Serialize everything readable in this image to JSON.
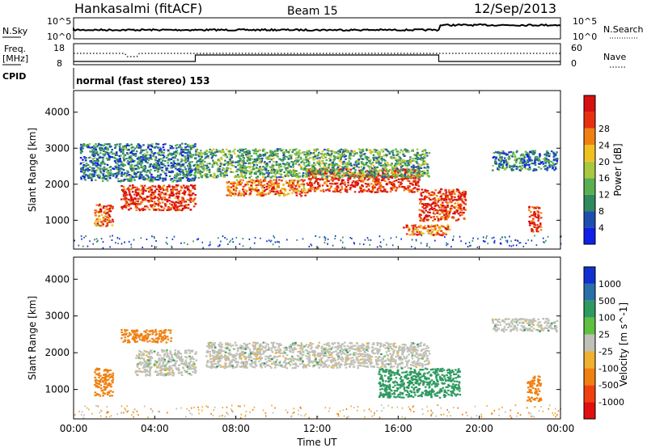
{
  "header": {
    "station": "Hankasalmi (fitACF)",
    "beam": "Beam 15",
    "date": "12/Sep/2013"
  },
  "top_panels": {
    "nsky_label": "N.Sky",
    "nsearch_label": "N.Search",
    "nsky_ticks": [
      "10^5",
      "10^0"
    ],
    "nsearch_ticks": [
      "10^5",
      "10^0"
    ],
    "freq_label_1": "Freq.",
    "freq_label_2": "[MHz]",
    "freq_ticks": [
      "18",
      "8"
    ],
    "nave_label": "Nave",
    "nave_ticks": [
      "60",
      "0"
    ],
    "cpid_label": "CPID",
    "cpid_text": "normal (fast stereo) 153"
  },
  "chart_data": [
    {
      "type": "heatmap",
      "title": "",
      "xlabel": "Time UT",
      "ylabel": "Slant Range [km]",
      "xlim": [
        "00:00",
        "24:00"
      ],
      "ylim": [
        200,
        4600
      ],
      "x_ticks": [
        "00:00",
        "04:00",
        "08:00",
        "12:00",
        "16:00",
        "20:00",
        "00:00"
      ],
      "y_ticks": [
        "1000",
        "2000",
        "3000",
        "4000"
      ],
      "colorbar": {
        "label": "Power [dB]",
        "range": [
          0,
          32
        ],
        "ticks": [
          "4",
          "8",
          "12",
          "16",
          "20",
          "24",
          "28"
        ],
        "colors": [
          "#1020e8",
          "#1e4fb0",
          "#2f8a60",
          "#58b050",
          "#a8c840",
          "#f0c020",
          "#f08010",
          "#e83010",
          "#d81010"
        ]
      },
      "regions": [
        {
          "t0": 1.0,
          "t1": 1.9,
          "r0": 850,
          "r1": 1500,
          "level": 24
        },
        {
          "t0": 2.3,
          "t1": 6.0,
          "r0": 1300,
          "r1": 2000,
          "level": 28
        },
        {
          "t0": 7.5,
          "t1": 11.5,
          "r0": 1700,
          "r1": 2150,
          "level": 24
        },
        {
          "t0": 11.5,
          "t1": 17.0,
          "r0": 1800,
          "r1": 2450,
          "level": 28
        },
        {
          "t0": 17.0,
          "t1": 19.3,
          "r0": 1000,
          "r1": 1900,
          "level": 28
        },
        {
          "t0": 16.2,
          "t1": 18.5,
          "r0": 600,
          "r1": 900,
          "level": 24
        },
        {
          "t0": 22.4,
          "t1": 23.0,
          "r0": 700,
          "r1": 1400,
          "level": 28
        },
        {
          "t0": 0.3,
          "t1": 6.0,
          "r0": 2100,
          "r1": 3150,
          "level": 8
        },
        {
          "t0": 6.0,
          "t1": 17.5,
          "r0": 2200,
          "r1": 3000,
          "level": 12
        },
        {
          "t0": 20.6,
          "t1": 23.8,
          "r0": 2400,
          "r1": 2950,
          "level": 8
        }
      ]
    },
    {
      "type": "heatmap",
      "title": "",
      "xlabel": "Time UT",
      "ylabel": "Slant Range [km]",
      "xlim": [
        "00:00",
        "24:00"
      ],
      "ylim": [
        200,
        4600
      ],
      "x_ticks": [
        "00:00",
        "04:00",
        "08:00",
        "12:00",
        "16:00",
        "20:00",
        "00:00"
      ],
      "y_ticks": [
        "1000",
        "2000",
        "3000",
        "4000"
      ],
      "colorbar": {
        "label": "Velocity [m s^-1]",
        "ticks": [
          "1000",
          "500",
          "100",
          "25",
          "-25",
          "-100",
          "-500",
          "-1000"
        ],
        "colors": [
          "#1030d0",
          "#2a70a8",
          "#2e9a60",
          "#60c040",
          "#c0c0b8",
          "#f0b030",
          "#f08010",
          "#f04010",
          "#e01010"
        ]
      },
      "regions": [
        {
          "t0": 1.0,
          "t1": 1.9,
          "r0": 850,
          "r1": 1600,
          "velocity": -300
        },
        {
          "t0": 2.3,
          "t1": 4.8,
          "r0": 2300,
          "r1": 2650,
          "velocity": -200
        },
        {
          "t0": 3.0,
          "t1": 6.0,
          "r0": 1400,
          "r1": 2100,
          "velocity": 0
        },
        {
          "t0": 6.5,
          "t1": 17.5,
          "r0": 1600,
          "r1": 2300,
          "velocity": 0
        },
        {
          "t0": 15.0,
          "t1": 19.0,
          "r0": 800,
          "r1": 1600,
          "velocity": 200
        },
        {
          "t0": 20.6,
          "t1": 23.8,
          "r0": 2600,
          "r1": 2950,
          "velocity": 0
        },
        {
          "t0": 22.3,
          "t1": 23.0,
          "r0": 700,
          "r1": 1400,
          "velocity": -300
        }
      ]
    }
  ]
}
